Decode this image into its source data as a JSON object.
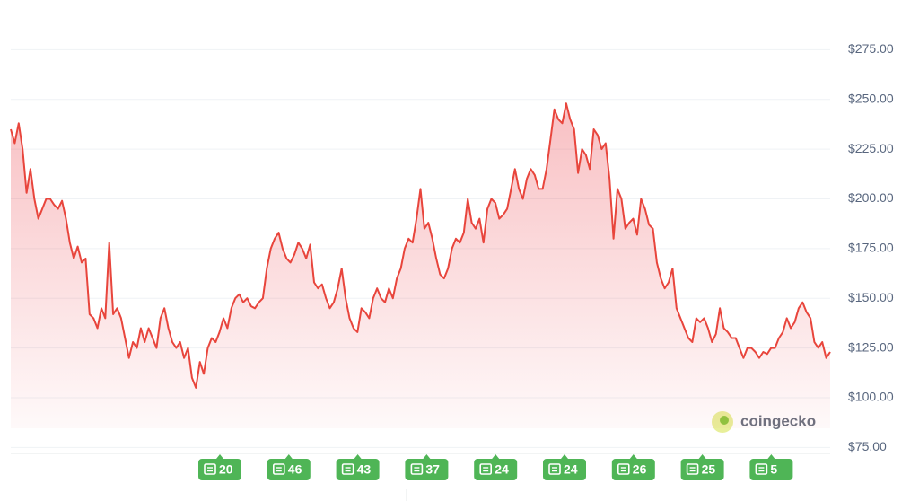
{
  "watermark": "coingecko",
  "chart_data": {
    "type": "line",
    "series": [
      {
        "name": "Price",
        "color": "#e8453c",
        "values": [
          235,
          228,
          238,
          225,
          203,
          215,
          200,
          190,
          195,
          200,
          200,
          197,
          195,
          199,
          190,
          178,
          170,
          176,
          168,
          170,
          142,
          140,
          135,
          145,
          140,
          178,
          142,
          145,
          140,
          130,
          120,
          128,
          125,
          135,
          128,
          135,
          130,
          125,
          140,
          145,
          135,
          128,
          125,
          128,
          120,
          125,
          110,
          105,
          118,
          112,
          125,
          130,
          128,
          133,
          140,
          135,
          145,
          150,
          152,
          148,
          150,
          146,
          145,
          148,
          150,
          165,
          175,
          180,
          183,
          175,
          170,
          168,
          172,
          178,
          175,
          170,
          177,
          158,
          155,
          157,
          150,
          145,
          148,
          155,
          165,
          150,
          140,
          135,
          133,
          145,
          143,
          140,
          150,
          155,
          150,
          148,
          155,
          150,
          160,
          165,
          175,
          180,
          178,
          190,
          205,
          185,
          188,
          180,
          170,
          162,
          160,
          165,
          175,
          180,
          178,
          183,
          200,
          188,
          185,
          190,
          178,
          195,
          200,
          198,
          190,
          192,
          195,
          205,
          215,
          205,
          200,
          210,
          215,
          212,
          205,
          205,
          215,
          230,
          245,
          240,
          238,
          248,
          240,
          235,
          213,
          225,
          222,
          215,
          235,
          232,
          225,
          228,
          210,
          180,
          205,
          200,
          185,
          188,
          190,
          182,
          200,
          195,
          187,
          185,
          168,
          160,
          155,
          158,
          165,
          145,
          140,
          135,
          130,
          128,
          140,
          138,
          140,
          135,
          128,
          132,
          145,
          135,
          133,
          130,
          130,
          125,
          120,
          125,
          125,
          123,
          120,
          123,
          122,
          125,
          125,
          130,
          133,
          140,
          135,
          138,
          145,
          148,
          143,
          140,
          128,
          125,
          128,
          120,
          123
        ]
      }
    ],
    "ylim": [
      72,
      300
    ],
    "yticks": [
      {
        "value": 75,
        "label": "$75.00"
      },
      {
        "value": 100,
        "label": "$100.00"
      },
      {
        "value": 125,
        "label": "$125.00"
      },
      {
        "value": 150,
        "label": "$150.00"
      },
      {
        "value": 175,
        "label": "$175.00"
      },
      {
        "value": 200,
        "label": "$200.00"
      },
      {
        "value": 225,
        "label": "$225.00"
      },
      {
        "value": 250,
        "label": "$250.00"
      },
      {
        "value": 275,
        "label": "$275.00"
      }
    ],
    "grid": true,
    "news_counts": [
      20,
      46,
      43,
      37,
      24,
      24,
      26,
      25,
      5
    ],
    "news_color": "#4fb556"
  }
}
